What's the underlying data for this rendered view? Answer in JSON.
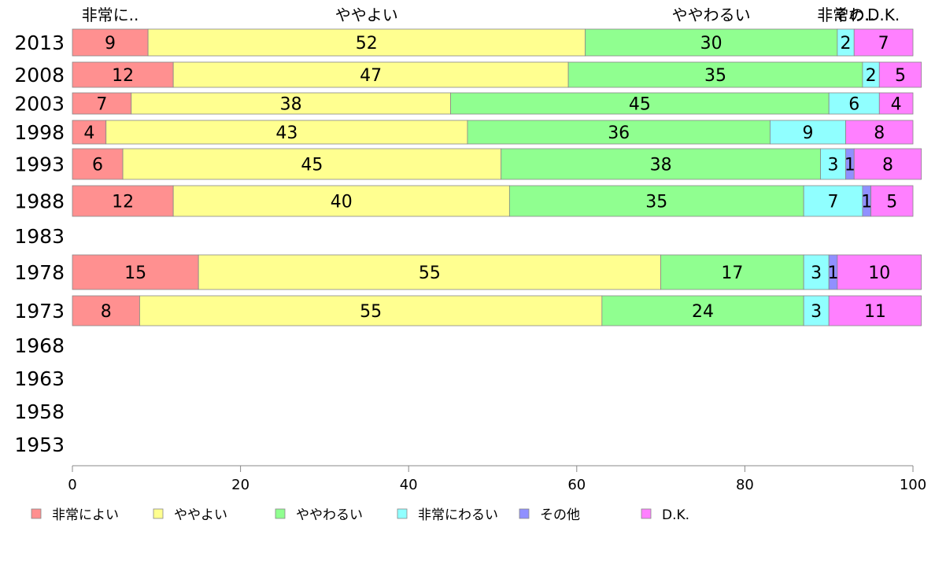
{
  "chart_data": {
    "type": "bar",
    "orientation": "horizontal",
    "stacked": true,
    "categories": [
      "2013",
      "2008",
      "2003",
      "1998",
      "1993",
      "1988",
      "1983",
      "1978",
      "1973",
      "1968",
      "1963",
      "1958",
      "1953"
    ],
    "series": [
      {
        "name": "非常によい",
        "color": "#ff9090",
        "values": [
          9,
          12,
          7,
          4,
          6,
          12,
          null,
          15,
          8,
          null,
          null,
          null,
          null
        ]
      },
      {
        "name": "ややよい",
        "color": "#ffff90",
        "values": [
          52,
          47,
          38,
          43,
          45,
          40,
          null,
          55,
          55,
          null,
          null,
          null,
          null
        ]
      },
      {
        "name": "ややわるい",
        "color": "#90ff90",
        "values": [
          30,
          35,
          45,
          36,
          38,
          35,
          null,
          17,
          24,
          null,
          null,
          null,
          null
        ]
      },
      {
        "name": "非常にわるい",
        "color": "#90ffff",
        "values": [
          2,
          2,
          6,
          9,
          3,
          7,
          null,
          3,
          3,
          null,
          null,
          null,
          null
        ]
      },
      {
        "name": "その他",
        "color": "#9090ff",
        "values": [
          0,
          0,
          0,
          0,
          1,
          1,
          null,
          1,
          0,
          null,
          null,
          null,
          null
        ]
      },
      {
        "name": "D.K.",
        "color": "#ff80ff",
        "values": [
          7,
          5,
          4,
          8,
          8,
          5,
          null,
          10,
          11,
          null,
          null,
          null,
          null
        ]
      }
    ],
    "top_labels": [
      "非常に..",
      "ややよい",
      "ややわるい",
      "非常わ..",
      "その..",
      "D.K."
    ],
    "xlim": [
      0,
      100
    ],
    "xticks": [
      "0",
      "20",
      "40",
      "60",
      "80",
      "100"
    ],
    "legend_position": "bottom",
    "grid": false
  }
}
